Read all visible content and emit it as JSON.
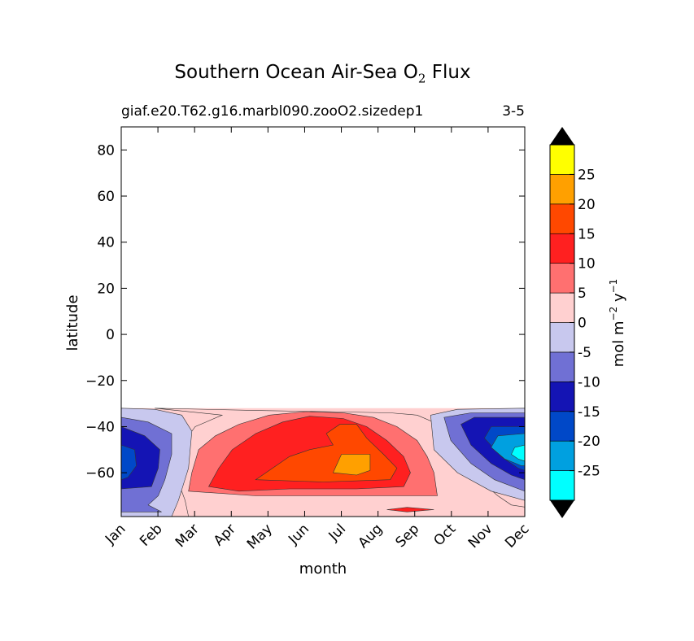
{
  "chart_data": {
    "type": "heatmap",
    "title_prefix": "Southern Ocean Air-Sea O",
    "title_sub": "2",
    "title_suffix": " Flux",
    "subtitle_left": "giaf.e20.T62.g16.marbl090.zooO2.sizedep1",
    "subtitle_right": "3-5",
    "xlabel": "month",
    "ylabel": "latitude",
    "x_tick_labels": [
      "Jan",
      "Feb",
      "Mar",
      "Apr",
      "May",
      "Jun",
      "Jul",
      "Aug",
      "Sep",
      "Oct",
      "Nov",
      "Dec"
    ],
    "ylim": [
      -79,
      90
    ],
    "y_ticks": [
      80,
      60,
      40,
      20,
      0,
      -20,
      -40,
      -60
    ],
    "y_tick_labels": [
      "80",
      "60",
      "40",
      "20",
      "0",
      "−20",
      "−40",
      "−60"
    ],
    "data_lat_max": -32,
    "colorbar": {
      "label_main": "mol m",
      "label_exp1": "−2",
      "label_mid": " y",
      "label_exp2": "−1",
      "levels": [
        -30,
        -25,
        -20,
        -15,
        -10,
        -5,
        0,
        5,
        10,
        15,
        20,
        25,
        30
      ],
      "tick_labels": [
        "-25",
        "-20",
        "-15",
        "-10",
        "-5",
        "0",
        "5",
        "10",
        "15",
        "20",
        "25"
      ],
      "colors": [
        "#00ffff",
        "#00a0e0",
        "#0048c8",
        "#1414b4",
        "#7070d4",
        "#c8c8ee",
        "#ffd0d0",
        "#ff7070",
        "#ff2020",
        "#ff4800",
        "#ffa000",
        "#ffff00"
      ],
      "extend_colors": [
        "#000000",
        "#000000"
      ]
    },
    "contour_bands": [
      {
        "level": 0,
        "label": "0 to 5",
        "points": [
          [
            1,
            -32
          ],
          [
            4,
            -33
          ],
          [
            6,
            -33.5
          ],
          [
            8,
            -34
          ],
          [
            8.8,
            -35
          ],
          [
            9.6,
            -40
          ],
          [
            10.2,
            -58
          ],
          [
            10.8,
            -65
          ],
          [
            11.2,
            -70
          ],
          [
            11.6,
            -74
          ],
          [
            12.5,
            -76
          ],
          [
            12.5,
            -79
          ],
          [
            2,
            -79
          ],
          [
            1.9,
            -72
          ],
          [
            1.7,
            -64
          ],
          [
            1.65,
            -56
          ],
          [
            1.8,
            -48
          ],
          [
            2.2,
            -40
          ],
          [
            3,
            -35
          ]
        ]
      },
      {
        "level": 5,
        "label": "5 to 10",
        "points": [
          [
            2.0,
            -68
          ],
          [
            2.1,
            -60
          ],
          [
            2.3,
            -50
          ],
          [
            2.8,
            -44
          ],
          [
            3.5,
            -39
          ],
          [
            4.4,
            -35
          ],
          [
            5.5,
            -33.5
          ],
          [
            6.6,
            -34
          ],
          [
            7.5,
            -36
          ],
          [
            8.2,
            -40
          ],
          [
            8.8,
            -46
          ],
          [
            9.1,
            -53
          ],
          [
            9.3,
            -60
          ],
          [
            9.4,
            -70
          ],
          [
            8,
            -70
          ],
          [
            6,
            -70
          ],
          [
            4,
            -70
          ]
        ]
      },
      {
        "level": 10,
        "label": "10 to 15",
        "points": [
          [
            2.6,
            -66
          ],
          [
            2.9,
            -58
          ],
          [
            3.3,
            -50
          ],
          [
            4.0,
            -43
          ],
          [
            4.8,
            -38
          ],
          [
            5.6,
            -35.5
          ],
          [
            6.6,
            -36.5
          ],
          [
            7.3,
            -40
          ],
          [
            7.9,
            -46
          ],
          [
            8.4,
            -53
          ],
          [
            8.6,
            -60
          ],
          [
            8.4,
            -66
          ],
          [
            7.0,
            -67
          ],
          [
            5.0,
            -67
          ],
          [
            3.5,
            -68
          ]
        ]
      },
      {
        "level": 15,
        "label": "15 to 20",
        "points": [
          [
            4.0,
            -63
          ],
          [
            4.5,
            -58
          ],
          [
            5.0,
            -53
          ],
          [
            5.6,
            -50
          ],
          [
            6.3,
            -48
          ],
          [
            6.1,
            -43
          ],
          [
            6.5,
            -39
          ],
          [
            7.0,
            -39
          ],
          [
            7.3,
            -45
          ],
          [
            7.8,
            -52
          ],
          [
            8.2,
            -58
          ],
          [
            8.0,
            -63
          ],
          [
            6.0,
            -64
          ]
        ]
      },
      {
        "level": 20,
        "label": "20 to 25",
        "points": [
          [
            6.3,
            -60
          ],
          [
            6.55,
            -52
          ],
          [
            7.4,
            -52
          ],
          [
            7.4,
            -59
          ],
          [
            7.0,
            -61
          ]
        ]
      },
      {
        "level": 10,
        "label": "10 to 15",
        "points": [
          [
            7.9,
            -76
          ],
          [
            8.5,
            -75
          ],
          [
            9.3,
            -76
          ],
          [
            8.5,
            -77
          ]
        ]
      },
      {
        "level": -5,
        "label": "-5 to 0",
        "points": [
          [
            0,
            -32
          ],
          [
            1,
            -32.5
          ],
          [
            1.8,
            -35
          ],
          [
            2.1,
            -42
          ],
          [
            2.0,
            -58
          ],
          [
            1.7,
            -72
          ],
          [
            1.5,
            -79
          ],
          [
            0,
            -79
          ]
        ]
      },
      {
        "level": -5,
        "label": "-5 to 0",
        "points": [
          [
            12,
            -32
          ],
          [
            10,
            -32.5
          ],
          [
            9.2,
            -35
          ],
          [
            9.3,
            -50
          ],
          [
            10.0,
            -60
          ],
          [
            11.0,
            -68
          ],
          [
            12,
            -72
          ]
        ]
      },
      {
        "level": -10,
        "label": "-10 to -5",
        "points": [
          [
            0,
            -36
          ],
          [
            0.8,
            -38
          ],
          [
            1.5,
            -43
          ],
          [
            1.5,
            -52
          ],
          [
            1.3,
            -63
          ],
          [
            1.1,
            -70
          ],
          [
            0.8,
            -74
          ],
          [
            1.2,
            -77
          ],
          [
            0,
            -77
          ]
        ]
      },
      {
        "level": -10,
        "label": "-10 to -5",
        "points": [
          [
            12,
            -34
          ],
          [
            10.4,
            -34
          ],
          [
            9.6,
            -36
          ],
          [
            9.8,
            -46
          ],
          [
            10.4,
            -56
          ],
          [
            11.1,
            -63
          ],
          [
            12,
            -68
          ]
        ]
      },
      {
        "level": -15,
        "label": "-15 to -10",
        "points": [
          [
            0,
            -40
          ],
          [
            0.7,
            -44
          ],
          [
            1.15,
            -50
          ],
          [
            1.1,
            -58
          ],
          [
            0.9,
            -66
          ],
          [
            0,
            -67
          ]
        ]
      },
      {
        "level": -15,
        "label": "-15 to -10",
        "points": [
          [
            12,
            -36
          ],
          [
            10.5,
            -36
          ],
          [
            10.1,
            -39
          ],
          [
            10.4,
            -48
          ],
          [
            11.0,
            -56
          ],
          [
            11.6,
            -61
          ],
          [
            12,
            -63
          ]
        ]
      },
      {
        "level": -20,
        "label": "-20 to -15",
        "points": [
          [
            0,
            -48
          ],
          [
            0.4,
            -50
          ],
          [
            0.45,
            -57
          ],
          [
            0.2,
            -62
          ],
          [
            0,
            -63
          ]
        ]
      },
      {
        "level": -20,
        "label": "-20 to -15",
        "points": [
          [
            12,
            -40
          ],
          [
            11.0,
            -40
          ],
          [
            10.8,
            -45
          ],
          [
            11.3,
            -53
          ],
          [
            11.8,
            -58
          ],
          [
            12,
            -59
          ]
        ]
      },
      {
        "level": -25,
        "label": "-25 to -20",
        "points": [
          [
            12,
            -43
          ],
          [
            11.2,
            -44
          ],
          [
            11.0,
            -49
          ],
          [
            11.4,
            -54
          ],
          [
            11.9,
            -57
          ],
          [
            12,
            -57
          ]
        ]
      },
      {
        "level": -30,
        "label": "-30 to -25",
        "points": [
          [
            12,
            -48
          ],
          [
            11.7,
            -49
          ],
          [
            11.6,
            -52
          ],
          [
            11.8,
            -54
          ],
          [
            12,
            -55
          ]
        ]
      }
    ]
  }
}
